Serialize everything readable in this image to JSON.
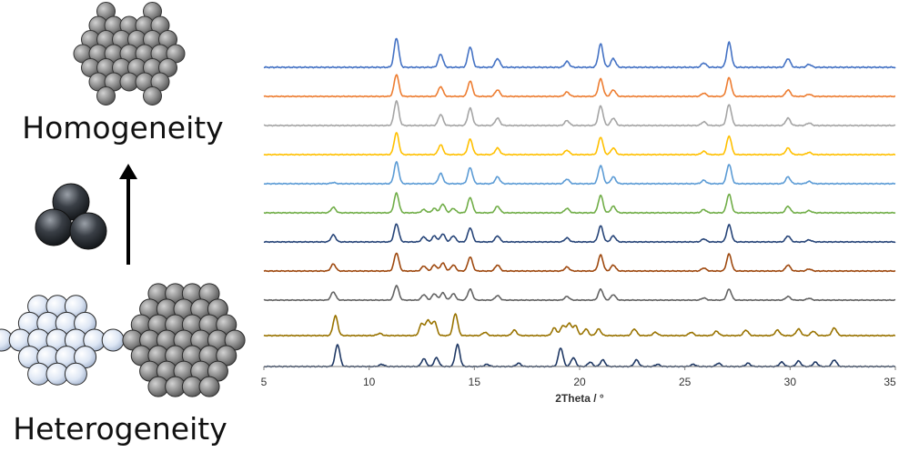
{
  "labels": {
    "top": "Homogeneity",
    "bottom": "Heterogeneity"
  },
  "icons": {
    "arrow": "up-arrow-icon",
    "homogeneous_cluster": "gray-particle-cluster-icon",
    "three_spheres": "three-dark-spheres-icon",
    "heterogeneous_mixed": "mixed-particle-cluster-icon",
    "heterogeneous_gray": "gray-particle-cluster-icon"
  },
  "chart_data": {
    "type": "line",
    "xlabel": "2Theta / °",
    "ylabel": "",
    "xlim": [
      5,
      35
    ],
    "xticks": [
      "5",
      "10",
      "15",
      "20",
      "25",
      "30",
      "35"
    ],
    "grid": false,
    "legend": "none",
    "series": [
      {
        "color": "#4472C4",
        "peaks": [
          [
            11.3,
            1.0
          ],
          [
            13.4,
            0.45
          ],
          [
            14.8,
            0.7
          ],
          [
            16.1,
            0.3
          ],
          [
            19.4,
            0.2
          ],
          [
            21.0,
            0.8
          ],
          [
            21.6,
            0.3
          ],
          [
            25.9,
            0.15
          ],
          [
            27.1,
            0.85
          ],
          [
            29.9,
            0.3
          ],
          [
            30.9,
            0.1
          ]
        ]
      },
      {
        "color": "#ED7D31",
        "peaks": [
          [
            11.3,
            1.0
          ],
          [
            13.4,
            0.45
          ],
          [
            14.8,
            0.7
          ],
          [
            16.1,
            0.3
          ],
          [
            19.4,
            0.2
          ],
          [
            21.0,
            0.8
          ],
          [
            21.6,
            0.3
          ],
          [
            25.9,
            0.15
          ],
          [
            27.1,
            0.85
          ],
          [
            29.9,
            0.3
          ],
          [
            30.9,
            0.1
          ]
        ]
      },
      {
        "color": "#A5A5A5",
        "peaks": [
          [
            11.3,
            1.0
          ],
          [
            13.4,
            0.45
          ],
          [
            14.8,
            0.7
          ],
          [
            16.1,
            0.3
          ],
          [
            19.4,
            0.2
          ],
          [
            21.0,
            0.8
          ],
          [
            21.6,
            0.3
          ],
          [
            25.9,
            0.15
          ],
          [
            27.1,
            0.85
          ],
          [
            29.9,
            0.3
          ],
          [
            30.9,
            0.1
          ]
        ]
      },
      {
        "color": "#FFC000",
        "peaks": [
          [
            11.3,
            1.0
          ],
          [
            13.4,
            0.45
          ],
          [
            14.8,
            0.7
          ],
          [
            16.1,
            0.3
          ],
          [
            19.4,
            0.2
          ],
          [
            21.0,
            0.8
          ],
          [
            21.6,
            0.3
          ],
          [
            25.9,
            0.15
          ],
          [
            27.1,
            0.85
          ],
          [
            29.9,
            0.3
          ],
          [
            30.9,
            0.1
          ]
        ]
      },
      {
        "color": "#5B9BD5",
        "peaks": [
          [
            8.3,
            0.05
          ],
          [
            11.3,
            0.95
          ],
          [
            13.4,
            0.45
          ],
          [
            14.8,
            0.7
          ],
          [
            16.1,
            0.3
          ],
          [
            19.4,
            0.2
          ],
          [
            21.0,
            0.8
          ],
          [
            21.6,
            0.3
          ],
          [
            25.9,
            0.15
          ],
          [
            27.1,
            0.85
          ],
          [
            29.9,
            0.3
          ],
          [
            30.9,
            0.1
          ]
        ]
      },
      {
        "color": "#70AD47",
        "peaks": [
          [
            8.3,
            0.25
          ],
          [
            11.3,
            0.9
          ],
          [
            12.6,
            0.15
          ],
          [
            13.1,
            0.2
          ],
          [
            13.5,
            0.4
          ],
          [
            14.0,
            0.2
          ],
          [
            14.8,
            0.7
          ],
          [
            16.1,
            0.3
          ],
          [
            19.4,
            0.2
          ],
          [
            21.0,
            0.8
          ],
          [
            21.6,
            0.3
          ],
          [
            25.9,
            0.15
          ],
          [
            27.1,
            0.85
          ],
          [
            29.9,
            0.3
          ],
          [
            30.9,
            0.1
          ]
        ]
      },
      {
        "color": "#264478",
        "peaks": [
          [
            8.3,
            0.35
          ],
          [
            11.3,
            0.9
          ],
          [
            12.6,
            0.25
          ],
          [
            13.1,
            0.3
          ],
          [
            13.5,
            0.4
          ],
          [
            14.0,
            0.3
          ],
          [
            14.8,
            0.7
          ],
          [
            16.1,
            0.3
          ],
          [
            19.4,
            0.2
          ],
          [
            21.0,
            0.8
          ],
          [
            21.6,
            0.3
          ],
          [
            25.9,
            0.15
          ],
          [
            27.1,
            0.85
          ],
          [
            29.9,
            0.3
          ],
          [
            30.9,
            0.1
          ]
        ]
      },
      {
        "color": "#9E480E",
        "peaks": [
          [
            8.3,
            0.35
          ],
          [
            11.3,
            0.9
          ],
          [
            12.6,
            0.25
          ],
          [
            13.1,
            0.3
          ],
          [
            13.5,
            0.4
          ],
          [
            14.0,
            0.3
          ],
          [
            14.8,
            0.7
          ],
          [
            16.1,
            0.3
          ],
          [
            19.4,
            0.2
          ],
          [
            21.0,
            0.8
          ],
          [
            21.6,
            0.3
          ],
          [
            25.9,
            0.15
          ],
          [
            27.1,
            0.85
          ],
          [
            29.9,
            0.3
          ],
          [
            30.9,
            0.1
          ]
        ]
      },
      {
        "color": "#636363",
        "peaks": [
          [
            8.3,
            0.45
          ],
          [
            11.3,
            0.8
          ],
          [
            12.6,
            0.3
          ],
          [
            13.1,
            0.35
          ],
          [
            13.5,
            0.4
          ],
          [
            14.0,
            0.35
          ],
          [
            14.8,
            0.6
          ],
          [
            16.1,
            0.25
          ],
          [
            19.4,
            0.2
          ],
          [
            21.0,
            0.6
          ],
          [
            21.6,
            0.3
          ],
          [
            25.9,
            0.12
          ],
          [
            27.1,
            0.6
          ],
          [
            29.9,
            0.2
          ],
          [
            30.9,
            0.1
          ]
        ]
      },
      {
        "color": "#997300",
        "peaks": [
          [
            8.4,
            0.9
          ],
          [
            10.5,
            0.1
          ],
          [
            12.5,
            0.55
          ],
          [
            12.8,
            0.7
          ],
          [
            13.1,
            0.65
          ],
          [
            14.1,
            1.0
          ],
          [
            15.5,
            0.15
          ],
          [
            16.9,
            0.25
          ],
          [
            18.8,
            0.35
          ],
          [
            19.2,
            0.45
          ],
          [
            19.5,
            0.55
          ],
          [
            19.8,
            0.45
          ],
          [
            20.3,
            0.3
          ],
          [
            20.9,
            0.3
          ],
          [
            22.6,
            0.3
          ],
          [
            23.6,
            0.15
          ],
          [
            25.3,
            0.15
          ],
          [
            26.5,
            0.2
          ],
          [
            27.9,
            0.25
          ],
          [
            29.4,
            0.25
          ],
          [
            30.4,
            0.3
          ],
          [
            31.1,
            0.2
          ],
          [
            32.1,
            0.35
          ]
        ]
      },
      {
        "color": "#1F3864",
        "peaks": [
          [
            8.5,
            1.0
          ],
          [
            10.6,
            0.1
          ],
          [
            12.6,
            0.35
          ],
          [
            13.2,
            0.4
          ],
          [
            14.2,
            1.0
          ],
          [
            15.6,
            0.1
          ],
          [
            17.1,
            0.15
          ],
          [
            19.1,
            0.85
          ],
          [
            19.7,
            0.4
          ],
          [
            20.5,
            0.2
          ],
          [
            21.1,
            0.3
          ],
          [
            22.7,
            0.3
          ],
          [
            23.7,
            0.1
          ],
          [
            25.4,
            0.1
          ],
          [
            26.6,
            0.15
          ],
          [
            28.0,
            0.15
          ],
          [
            29.6,
            0.2
          ],
          [
            30.4,
            0.25
          ],
          [
            31.2,
            0.2
          ],
          [
            32.1,
            0.3
          ]
        ]
      }
    ]
  }
}
